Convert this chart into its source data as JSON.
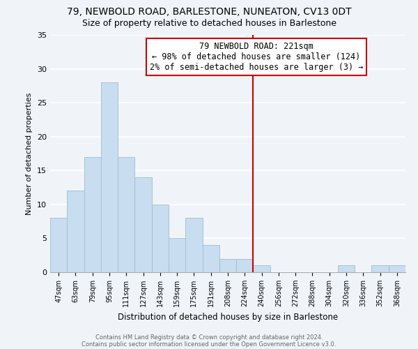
{
  "title1": "79, NEWBOLD ROAD, BARLESTONE, NUNEATON, CV13 0DT",
  "title2": "Size of property relative to detached houses in Barlestone",
  "xlabel": "Distribution of detached houses by size in Barlestone",
  "ylabel": "Number of detached properties",
  "bar_color": "#c8ddef",
  "bar_edgecolor": "#9bbdd6",
  "bin_labels": [
    "47sqm",
    "63sqm",
    "79sqm",
    "95sqm",
    "111sqm",
    "127sqm",
    "143sqm",
    "159sqm",
    "175sqm",
    "191sqm",
    "208sqm",
    "224sqm",
    "240sqm",
    "256sqm",
    "272sqm",
    "288sqm",
    "304sqm",
    "320sqm",
    "336sqm",
    "352sqm",
    "368sqm"
  ],
  "bin_values": [
    8,
    12,
    17,
    28,
    17,
    14,
    10,
    5,
    8,
    4,
    2,
    2,
    1,
    0,
    0,
    0,
    0,
    1,
    0,
    1,
    1
  ],
  "vline_x": 11.5,
  "vline_color": "#cc0000",
  "ylim": [
    0,
    35
  ],
  "yticks": [
    0,
    5,
    10,
    15,
    20,
    25,
    30,
    35
  ],
  "annotation_title": "79 NEWBOLD ROAD: 221sqm",
  "annotation_line1": "← 98% of detached houses are smaller (124)",
  "annotation_line2": "2% of semi-detached houses are larger (3) →",
  "footer1": "Contains HM Land Registry data © Crown copyright and database right 2024.",
  "footer2": "Contains public sector information licensed under the Open Government Licence v3.0.",
  "background_color": "#f0f4f8",
  "grid_color": "#ffffff",
  "title1_fontsize": 10,
  "title2_fontsize": 9,
  "annotation_box_color": "#ffffff",
  "annotation_border_color": "#cc0000",
  "annotation_fontsize": 8.5
}
